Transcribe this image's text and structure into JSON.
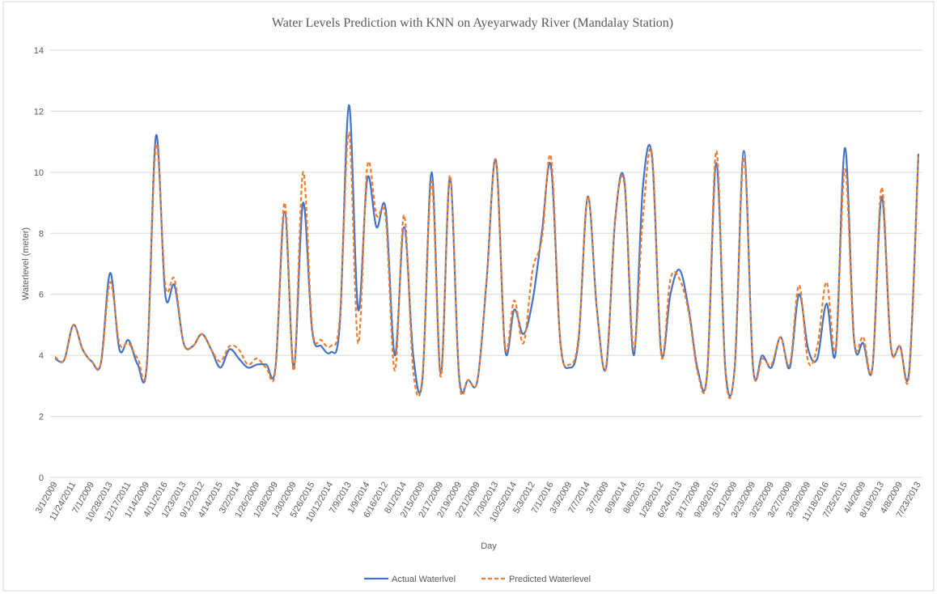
{
  "chart_data": {
    "type": "line",
    "title": "Water  Levels Prediction with KNN on Ayeyarwady River (Mandalay  Station)",
    "x_label": "Day",
    "y_label": "Waterlevel (meter)",
    "categories": [
      "3/1/2009",
      null,
      "11/24/2011",
      null,
      "7/1/2009",
      null,
      "10/28/2013",
      null,
      "12/17/2011",
      null,
      "1/14/2009",
      null,
      "4/11/2016",
      null,
      "1/23/2013",
      null,
      "9/12/2012",
      null,
      "4/14/2015",
      null,
      "3/2/2014",
      null,
      "1/26/2009",
      null,
      "1/28/2009",
      null,
      "1/30/2009",
      null,
      "5/26/2015",
      null,
      "10/12/2014",
      null,
      "7/9/2013",
      null,
      "1/9/2014",
      null,
      "6/16/2012",
      null,
      "8/1/2014",
      null,
      "2/15/2009",
      null,
      "2/17/2009",
      null,
      "2/19/2009",
      null,
      "2/21/2009",
      null,
      "7/30/2013",
      null,
      "10/25/2014",
      null,
      "5/3/2012",
      null,
      "7/1/2016",
      null,
      "3/3/2009",
      null,
      "7/7/2014",
      null,
      "3/7/2009",
      null,
      "8/9/2014",
      null,
      "8/6/2015",
      null,
      "1/28/2012",
      null,
      "6/24/2013",
      null,
      "3/17/2009",
      null,
      "9/28/2015",
      null,
      "3/21/2009",
      null,
      "3/23/2009",
      null,
      "3/25/2009",
      null,
      "3/27/2009",
      null,
      "3/29/2009",
      null,
      "11/18/2016",
      null,
      "7/25/2015",
      null,
      "4/4/2009",
      null,
      "8/19/2013",
      null,
      "4/8/2009",
      null,
      "7/23/2013"
    ],
    "series": [
      {
        "name": "Actual Waterlvel",
        "color": "#4472c4",
        "dash": false,
        "values": [
          3.9,
          3.85,
          5.0,
          4.2,
          3.8,
          3.75,
          6.7,
          4.2,
          4.5,
          3.7,
          3.7,
          11.2,
          6.0,
          6.3,
          4.4,
          4.3,
          4.7,
          4.2,
          3.6,
          4.2,
          3.9,
          3.6,
          3.7,
          3.7,
          3.6,
          8.7,
          3.6,
          9.0,
          4.8,
          4.3,
          4.1,
          5.0,
          12.2,
          5.5,
          9.8,
          8.2,
          8.8,
          4.0,
          8.2,
          4.0,
          3.2,
          10.0,
          3.4,
          9.8,
          3.3,
          3.2,
          3.2,
          6.5,
          10.4,
          4.2,
          5.5,
          4.7,
          5.8,
          8.0,
          10.2,
          4.5,
          3.6,
          4.5,
          9.2,
          5.5,
          3.6,
          8.5,
          9.7,
          4.0,
          9.5,
          10.5,
          4.1,
          6.0,
          6.8,
          5.5,
          3.5,
          3.4,
          10.3,
          3.5,
          3.6,
          10.7,
          3.6,
          4.0,
          3.6,
          4.6,
          3.6,
          6.0,
          4.2,
          3.9,
          5.7,
          4.1,
          10.8,
          4.5,
          4.4,
          3.6,
          9.2,
          4.3,
          4.3,
          3.5,
          10.6
        ]
      },
      {
        "name": "Predicted Waterlevel",
        "color": "#ed7d31",
        "dash": true,
        "values": [
          3.95,
          3.85,
          5.0,
          4.2,
          3.8,
          3.75,
          6.4,
          4.4,
          4.4,
          3.9,
          3.7,
          10.9,
          6.3,
          6.5,
          4.4,
          4.3,
          4.7,
          4.2,
          3.8,
          4.3,
          4.2,
          3.7,
          3.9,
          3.6,
          3.55,
          9.0,
          3.5,
          10.0,
          4.9,
          4.5,
          4.3,
          5.2,
          11.3,
          4.4,
          10.2,
          8.6,
          8.5,
          3.5,
          8.6,
          3.5,
          3.3,
          9.7,
          3.3,
          9.9,
          3.2,
          3.2,
          3.2,
          6.5,
          10.4,
          4.3,
          5.8,
          4.4,
          6.8,
          7.8,
          10.5,
          4.5,
          3.7,
          4.6,
          9.2,
          5.5,
          3.6,
          8.5,
          9.6,
          4.2,
          8.5,
          10.6,
          4.0,
          6.5,
          6.5,
          5.4,
          3.4,
          3.4,
          10.7,
          3.4,
          3.6,
          10.5,
          3.6,
          3.9,
          3.7,
          4.6,
          3.7,
          6.3,
          3.8,
          4.3,
          6.4,
          4.2,
          10.1,
          4.5,
          4.6,
          3.6,
          9.5,
          4.3,
          4.3,
          3.4,
          10.6
        ]
      }
    ],
    "ylim": [
      0,
      14
    ],
    "yticks": [
      0,
      2,
      4,
      6,
      8,
      10,
      12,
      14
    ],
    "grid": true,
    "legend": "bottom"
  }
}
